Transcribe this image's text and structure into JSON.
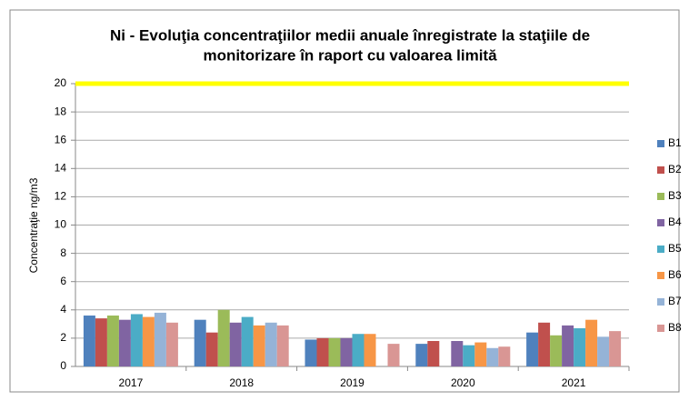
{
  "chart_data": {
    "type": "bar",
    "title": [
      "Ni - Evoluţia concentraţiilor medii anuale înregistrate la staţiile de",
      "monitorizare în raport cu valoarea limită"
    ],
    "y_label": "Concentraţie ng/m3",
    "categories": [
      "2017",
      "2018",
      "2019",
      "2020",
      "2021"
    ],
    "series": [
      {
        "name": "B1",
        "color": "#4f81bd",
        "values": [
          3.6,
          3.3,
          1.9,
          1.6,
          2.4
        ]
      },
      {
        "name": "B2",
        "color": "#c0504d",
        "values": [
          3.4,
          2.4,
          2.0,
          1.8,
          3.1
        ]
      },
      {
        "name": "B3",
        "color": "#9bbb59",
        "values": [
          3.6,
          4.0,
          2.0,
          null,
          2.2
        ]
      },
      {
        "name": "B4",
        "color": "#8064a2",
        "values": [
          3.3,
          3.1,
          2.0,
          1.8,
          2.9
        ]
      },
      {
        "name": "B5",
        "color": "#4bacc6",
        "values": [
          3.7,
          3.5,
          2.3,
          1.5,
          2.7
        ]
      },
      {
        "name": "B6",
        "color": "#f79646",
        "values": [
          3.5,
          2.9,
          2.3,
          1.7,
          3.3
        ]
      },
      {
        "name": "B7",
        "color": "#95b3d7",
        "values": [
          3.8,
          3.1,
          null,
          1.3,
          2.1
        ]
      },
      {
        "name": "B8",
        "color": "#d99694",
        "values": [
          3.1,
          2.9,
          1.6,
          1.4,
          2.5
        ]
      }
    ],
    "limit_line": {
      "value": 20,
      "color": "#ffff00"
    },
    "ylim": [
      0,
      20
    ],
    "yticks": [
      0,
      2,
      4,
      6,
      8,
      10,
      12,
      14,
      16,
      18,
      20
    ],
    "grid": true,
    "legend": "right"
  }
}
